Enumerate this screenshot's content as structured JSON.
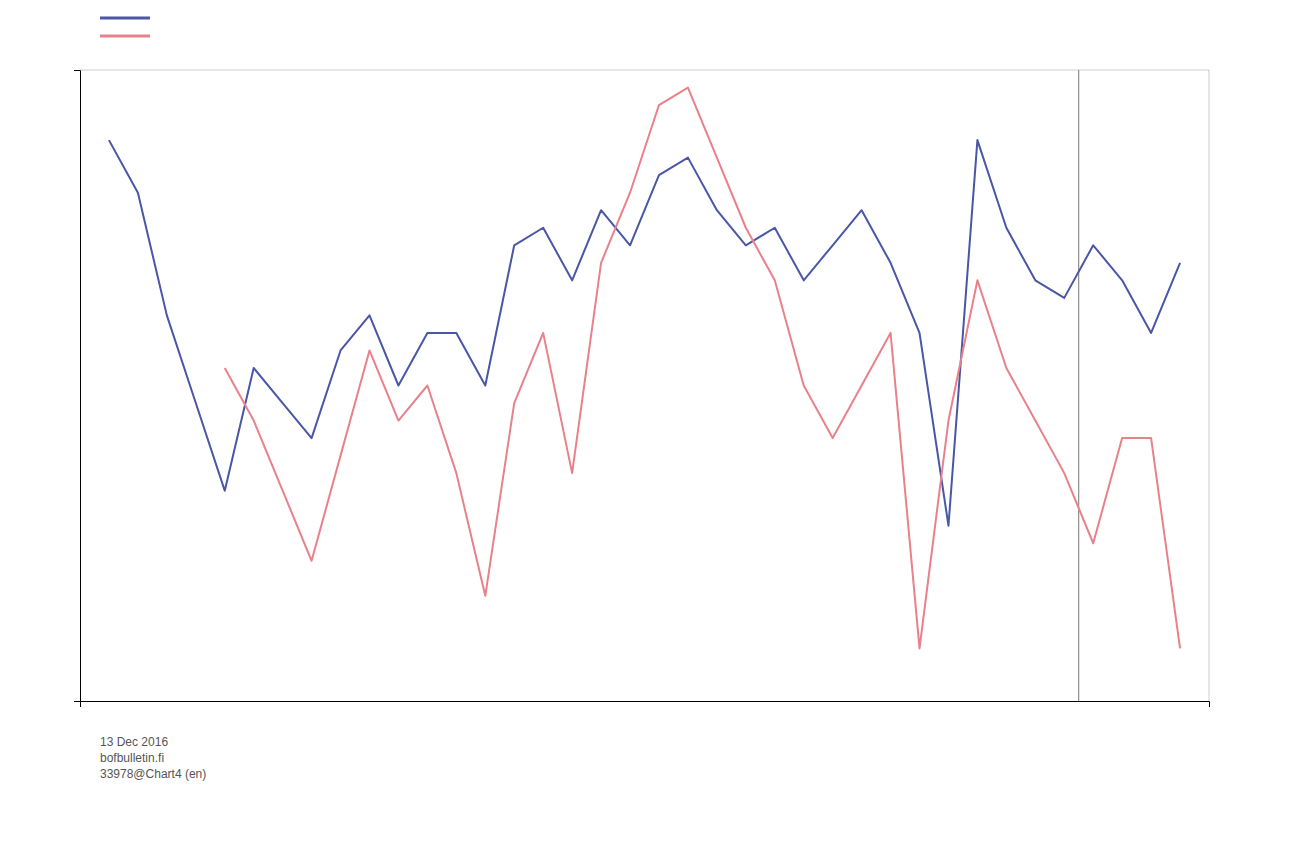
{
  "chart_data": {
    "type": "line",
    "x": [
      0,
      1,
      2,
      3,
      4,
      5,
      6,
      7,
      8,
      9,
      10,
      11,
      12,
      13,
      14,
      15,
      16,
      17,
      18,
      19,
      20,
      21,
      22,
      23,
      24,
      25,
      26,
      27,
      28,
      29,
      30,
      31,
      32,
      33,
      34,
      35,
      36,
      37
    ],
    "series": [
      {
        "color": "#4a56a6",
        "values": [
          10,
          7,
          0,
          -5,
          -10,
          -3,
          -5,
          -7,
          -2,
          0,
          -4,
          -1,
          -1,
          -4,
          4,
          5,
          2,
          6,
          4,
          8,
          9,
          6,
          4,
          5,
          2,
          4,
          6,
          3,
          -1,
          -12,
          10,
          5,
          2,
          1,
          4,
          2,
          -1,
          3
        ]
      },
      {
        "color": "#e8818a",
        "values": [
          null,
          null,
          null,
          null,
          -3,
          -6,
          -10,
          -14,
          -8,
          -2,
          -6,
          -4,
          -9,
          -16,
          -5,
          -1,
          -9,
          3,
          7,
          12,
          13,
          9,
          5,
          2,
          -4,
          -7,
          -4,
          -1,
          -19,
          -6,
          2,
          -3,
          -6,
          -9,
          -13,
          -7,
          -7,
          -19
        ]
      }
    ],
    "xlim": [
      -1,
      38
    ],
    "ylim": [
      -22,
      14
    ],
    "xticks": [],
    "yticks": [],
    "tick_labels": false,
    "legend": "upper left",
    "vlines": [
      {
        "x": 33.5,
        "color": "#777777"
      }
    ],
    "annotations": [
      "13 Dec 2016",
      "bofbulletin.fi",
      "33978@Chart4 (en)"
    ]
  }
}
